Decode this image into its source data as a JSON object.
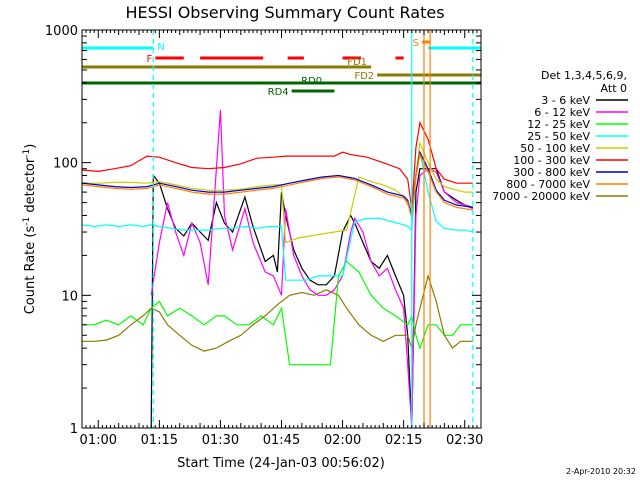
{
  "chart_data": {
    "type": "line",
    "title": "HESSI Observing Summary Count Rates",
    "ylabel_main": "Count Rate (s",
    "ylabel_sup": "-1",
    "ylabel_rest": " detector",
    "ylabel_sup2": "-1",
    "ylabel_close": ")",
    "xlabel": "Start Time (24-Jan-03 00:56:02)",
    "footer": "2-Apr-2010 20:32",
    "yscale": "log",
    "ylim": [
      1,
      1000
    ],
    "xlim_minutes": [
      0,
      98
    ],
    "y_ticks": [
      {
        "v": 1,
        "label": "1"
      },
      {
        "v": 10,
        "label": "10"
      },
      {
        "v": 100,
        "label": "100"
      },
      {
        "v": 1000,
        "label": "1000"
      }
    ],
    "x_ticks": [
      {
        "m": 4,
        "label": "01:00"
      },
      {
        "m": 19,
        "label": "01:15"
      },
      {
        "m": 34,
        "label": "01:30"
      },
      {
        "m": 49,
        "label": "01:45"
      },
      {
        "m": 64,
        "label": "02:00"
      },
      {
        "m": 79,
        "label": "02:15"
      },
      {
        "m": 94,
        "label": "02:30"
      }
    ],
    "legend": {
      "header": [
        "Det 1,3,4,5,6,9,",
        "Att 0"
      ],
      "items": [
        {
          "label": "3 - 6 keV",
          "color": "#000000"
        },
        {
          "label": "6 - 12 keV",
          "color": "#ff00ff"
        },
        {
          "label": "12 - 25 keV",
          "color": "#00ff00"
        },
        {
          "label": "25 - 50 keV",
          "color": "#00ffff"
        },
        {
          "label": "50 - 100 keV",
          "color": "#cccc00"
        },
        {
          "label": "100 - 300 keV",
          "color": "#ff0000"
        },
        {
          "label": "300 - 800 keV",
          "color": "#0000cc"
        },
        {
          "label": "800 - 7000 keV",
          "color": "#ff8000"
        },
        {
          "label": "7000 - 20000 keV",
          "color": "#8c7a00"
        }
      ]
    },
    "flag_bars": [
      {
        "label": "N",
        "color": "#00ffff",
        "label_pos": "right",
        "segments": [
          [
            0,
            17.5
          ],
          [
            85,
            98
          ]
        ],
        "row": 0
      },
      {
        "label": "S",
        "color": "#ff8000",
        "label_pos": "left",
        "segments": [
          [
            83.5,
            85.5
          ]
        ],
        "row": 1
      },
      {
        "label": "F",
        "color": "#ff0000",
        "label_pos": "left",
        "segments": [
          [
            18,
            25
          ],
          [
            29,
            44.5
          ],
          [
            50.5,
            54.5
          ],
          [
            64,
            68.5
          ],
          [
            77,
            79
          ]
        ],
        "row": 2
      },
      {
        "label": "FD1",
        "color": "#8c7a00",
        "label_pos": "right",
        "segments": [
          [
            0,
            71
          ]
        ],
        "row": 3
      },
      {
        "label": "FD2",
        "color": "#8c7a00",
        "label_pos": "left",
        "segments": [
          [
            72.5,
            98
          ]
        ],
        "row": 4
      },
      {
        "label": "RD0",
        "color": "#006400",
        "label_pos": "center",
        "segments": [
          [
            0,
            98
          ]
        ],
        "row": 5
      },
      {
        "label": "RD4",
        "color": "#006400",
        "label_pos": "left",
        "segments": [
          [
            51.5,
            62
          ]
        ],
        "row": 6
      }
    ],
    "vlines": [
      {
        "m": 17.5,
        "color": "#00ffff",
        "dash": true
      },
      {
        "m": 81,
        "color": "#00ffff",
        "dash": false
      },
      {
        "m": 84,
        "color": "#ff8000",
        "dash": false
      },
      {
        "m": 85.5,
        "color": "#ff8000",
        "dash": false
      },
      {
        "m": 96,
        "color": "#00ffff",
        "dash": true
      }
    ],
    "series": [
      {
        "name": "3 - 6 keV",
        "color": "#000000",
        "x": [
          17,
          17.5,
          19,
          21,
          23,
          25,
          27,
          29,
          31,
          33,
          35,
          37,
          40,
          42,
          45,
          47,
          48,
          49,
          50,
          52,
          54,
          56,
          58,
          60,
          62,
          64,
          66,
          67,
          69,
          71,
          73,
          75,
          77,
          79,
          80,
          81,
          82,
          83,
          85,
          87,
          89,
          92,
          94,
          96
        ],
        "y": [
          1,
          80,
          70,
          45,
          32,
          28,
          35,
          30,
          26,
          50,
          35,
          30,
          55,
          33,
          18,
          20,
          15,
          60,
          40,
          22,
          16,
          13,
          12,
          12,
          14,
          30,
          40,
          35,
          25,
          18,
          16,
          20,
          14,
          10,
          5,
          1,
          60,
          90,
          90,
          90,
          60,
          52,
          48,
          46
        ]
      },
      {
        "name": "6 - 12 keV",
        "color": "#ff00ff",
        "x": [
          17,
          19,
          21,
          23,
          25,
          27,
          29,
          31,
          33,
          34,
          35,
          37,
          40,
          42,
          45,
          47,
          49,
          50,
          52,
          54,
          56,
          58,
          60,
          62,
          64,
          66,
          67,
          69,
          71,
          73,
          75,
          77,
          79,
          80,
          81,
          82,
          83,
          85,
          87,
          89,
          92,
          94,
          96
        ],
        "y": [
          10,
          25,
          50,
          30,
          20,
          35,
          25,
          12,
          90,
          250,
          40,
          22,
          45,
          25,
          15,
          14,
          10,
          45,
          20,
          14,
          11,
          10,
          10,
          11,
          14,
          30,
          38,
          30,
          18,
          14,
          16,
          11,
          8,
          3,
          1,
          40,
          80,
          90,
          85,
          60,
          50,
          48,
          45
        ]
      },
      {
        "name": "12 - 25 keV",
        "color": "#00ff00",
        "x": [
          0,
          3,
          6,
          9,
          12,
          15,
          17,
          19,
          21,
          24,
          27,
          30,
          33,
          35,
          38,
          41,
          44,
          47,
          49,
          51,
          53,
          55,
          58,
          61,
          63,
          65,
          68,
          71,
          74,
          77,
          80,
          81,
          82,
          83,
          85,
          87,
          89,
          91,
          93,
          96
        ],
        "y": [
          6,
          6,
          6.5,
          6,
          7,
          6,
          8,
          9,
          7,
          8,
          7,
          6,
          7,
          7,
          6,
          6,
          7,
          6,
          8,
          3,
          3,
          3,
          3,
          3,
          14,
          18,
          15,
          10,
          8,
          7,
          6,
          7,
          5,
          4,
          6,
          6,
          5,
          5,
          6,
          6
        ]
      },
      {
        "name": "25 - 50 keV",
        "color": "#00ffff",
        "x": [
          0,
          3,
          6,
          9,
          12,
          15,
          17,
          19,
          22,
          25,
          28,
          31,
          34,
          37,
          40,
          43,
          46,
          49,
          50,
          52,
          55,
          58,
          61,
          64,
          67,
          70,
          73,
          76,
          79,
          80,
          81,
          82,
          83,
          85,
          87,
          89,
          92,
          94,
          96
        ],
        "y": [
          34,
          33,
          34,
          33,
          34,
          33,
          34,
          33,
          32,
          31,
          31,
          31,
          32,
          32,
          33,
          32,
          33,
          33,
          13,
          13,
          13,
          14,
          14,
          14,
          36,
          38,
          38,
          36,
          34,
          33,
          31,
          80,
          120,
          60,
          36,
          32,
          31,
          31,
          30
        ]
      },
      {
        "name": "50 - 100 keV",
        "color": "#cccc00",
        "x": [
          0,
          4,
          8,
          12,
          16,
          19,
          23,
          27,
          31,
          35,
          39,
          43,
          47,
          49,
          50,
          53,
          56,
          59,
          62,
          65,
          68,
          71,
          74,
          77,
          79,
          80,
          81,
          82,
          83,
          85,
          87,
          89,
          92,
          94,
          96
        ],
        "y": [
          70,
          70,
          71,
          71,
          70,
          72,
          68,
          64,
          62,
          62,
          63,
          66,
          68,
          68,
          25,
          27,
          28,
          29,
          30,
          31,
          78,
          72,
          68,
          62,
          55,
          48,
          45,
          80,
          140,
          100,
          75,
          66,
          62,
          60,
          60
        ]
      },
      {
        "name": "100 - 300 keV",
        "color": "#ff0000",
        "x": [
          0,
          4,
          8,
          12,
          16,
          19,
          23,
          27,
          31,
          35,
          39,
          43,
          47,
          50,
          54,
          58,
          62,
          64,
          66,
          70,
          74,
          78,
          80,
          81,
          82,
          83,
          85,
          87,
          89,
          92,
          94,
          96
        ],
        "y": [
          88,
          86,
          90,
          95,
          112,
          110,
          100,
          92,
          90,
          92,
          98,
          108,
          110,
          112,
          112,
          112,
          112,
          120,
          115,
          110,
          100,
          90,
          75,
          45,
          130,
          200,
          150,
          90,
          75,
          70,
          70,
          70
        ]
      },
      {
        "name": "300 - 800 keV",
        "color": "#0000cc",
        "x": [
          0,
          4,
          8,
          12,
          16,
          19,
          23,
          27,
          31,
          35,
          39,
          43,
          47,
          51,
          55,
          59,
          63,
          67,
          71,
          75,
          79,
          80,
          81,
          82,
          83,
          85,
          87,
          89,
          92,
          94,
          96
        ],
        "y": [
          70,
          68,
          66,
          65,
          66,
          70,
          66,
          62,
          60,
          60,
          62,
          64,
          66,
          70,
          74,
          78,
          80,
          76,
          68,
          60,
          56,
          52,
          40,
          80,
          120,
          90,
          62,
          52,
          48,
          47,
          46
        ]
      },
      {
        "name": "800 - 7000 keV",
        "color": "#ff8000",
        "x": [
          0,
          4,
          8,
          12,
          16,
          19,
          23,
          27,
          31,
          35,
          39,
          43,
          47,
          51,
          55,
          59,
          63,
          67,
          71,
          75,
          79,
          80,
          81,
          82,
          83,
          85,
          87,
          89,
          92,
          94,
          96
        ],
        "y": [
          68,
          66,
          64,
          63,
          64,
          68,
          64,
          60,
          58,
          58,
          60,
          62,
          64,
          68,
          72,
          76,
          78,
          74,
          66,
          58,
          54,
          50,
          38,
          78,
          115,
          85,
          60,
          50,
          46,
          45,
          44
        ]
      },
      {
        "name": "7000 - 20000 keV",
        "color": "#8c7a00",
        "x": [
          0,
          3,
          6,
          9,
          12,
          15,
          17,
          19,
          21,
          24,
          27,
          30,
          33,
          36,
          39,
          42,
          45,
          48,
          51,
          54,
          57,
          60,
          63,
          65,
          68,
          71,
          74,
          77,
          80,
          81,
          82,
          83,
          85,
          87,
          89,
          91,
          93,
          96
        ],
        "y": [
          4.5,
          4.5,
          4.6,
          5,
          6,
          7,
          8,
          7.5,
          6,
          5,
          4.2,
          3.8,
          4,
          4.5,
          5,
          6,
          7,
          8.5,
          10,
          10.5,
          10,
          11,
          10,
          8,
          6,
          5,
          4.5,
          5,
          5,
          4,
          6,
          8,
          14,
          9,
          5,
          4,
          4.5,
          4.5
        ]
      }
    ]
  }
}
